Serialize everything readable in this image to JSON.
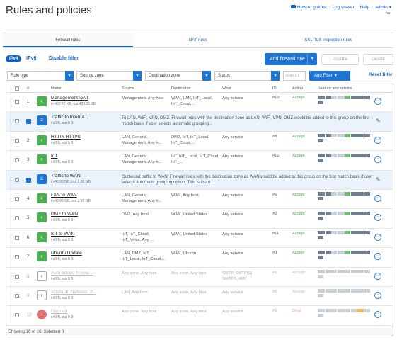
{
  "page": {
    "title": "Rules and policies",
    "top_links": [
      "How-to guides",
      "Log viewer",
      "Help"
    ],
    "user": "admin",
    "user_sub": "na"
  },
  "tabs": [
    "Firewall rules",
    "NAT rules",
    "SSL/TLS inspection rules"
  ],
  "toolbar": {
    "ipv4": "IPv4",
    "ipv6": "IPv6",
    "disable_filter": "Disable filter",
    "add_rule": "Add firewall rule",
    "disable": "Disable",
    "delete": "Delete"
  },
  "filters": {
    "rule_type": "Rule type",
    "source_zone": "Source zone",
    "destination_zone": "Destination zone",
    "status": "Status",
    "rule_id_placeholder": "Rule ID",
    "add_filter": "Add Filter",
    "reset_filter": "Reset filter"
  },
  "columns": {
    "num": "#",
    "name": "Name",
    "source": "Source",
    "destination": "Destination",
    "what": "What",
    "id": "ID",
    "action": "Action",
    "feature": "Feature and service"
  },
  "rows": [
    {
      "num": "1",
      "name": "ManagementToAll",
      "sub": "in 422.75 KB, out 433.25 KB",
      "src": "Management, Any host",
      "dst": "WAN, LAN, IoT_Local, IoT_Cloud,...",
      "what": "Any service",
      "id": "#13",
      "action": "Accept"
    },
    {
      "group": true,
      "name": "Traffic to Interna...",
      "sub": "in 0 B, out 0 B",
      "desc": "To LAN, WiFi, VPN, DMZ. Firewall rules with the destination zone as LAN, WiFi, VPN, DMZ would be added to this group on the first match basis if user selects automatic grouping..."
    },
    {
      "num": "2",
      "name": "HTTP/ HTTPS",
      "sub": "in 0 B, out 0 B",
      "src": "LAN, General, Management, Any h...",
      "dst": "DMZ, IoT, IoT_Local, IoT_Cloud,...",
      "what": "Any service",
      "id": "#8",
      "action": "Accept"
    },
    {
      "num": "3",
      "name": "IoT",
      "sub": "in 0 B, out 0 B",
      "src": "LAN, General, Management, Any h...",
      "dst": "IoT, IoT_Local, IoT_Cloud, IoT_...",
      "what": "Any service",
      "id": "#12",
      "action": "Accept"
    },
    {
      "group": true,
      "name": "Traffic to WAN",
      "sub": "in 45.06 GB, out 1.92 GB",
      "desc": "Outbound traffic to WAN. Firewall rules with the destination zone as WAN would be added to this group on the first match basis if user selects automatic grouping option. This is the d..."
    },
    {
      "num": "4",
      "name": "LAN to WAN",
      "sub": "in 45.06 GB, out 1.92 GB",
      "src": "LAN, General, Management, Any h...",
      "dst": "WAN, Any host",
      "what": "Any service",
      "id": "#6",
      "action": "Accept"
    },
    {
      "num": "5",
      "name": "DMZ to WAN",
      "sub": "in 0 B, out 0 B",
      "src": "DMZ, Any host",
      "dst": "WAN, United States",
      "what": "Any service",
      "id": "#2",
      "action": "Accept"
    },
    {
      "num": "6",
      "name": "IoT to WAN",
      "sub": "in 0 B, out 0 B",
      "src": "IoT, IoT_Cloud, IoT_Voice, Any ...",
      "dst": "WAN, United States",
      "what": "Any service",
      "id": "#11",
      "action": "Accept"
    },
    {
      "num": "7",
      "name": "Ubuntu Update",
      "sub": "in 0 B, out 0 B",
      "src": "LAN, DMZ, IoT, IoT_Local, IoT_Cloud,...",
      "dst": "WAN, Ubuntu",
      "what": "Any service",
      "id": "#3",
      "action": "Accept"
    },
    {
      "num": "8",
      "disabled": true,
      "name": "Auto added firewal...",
      "sub": "in 0 B, out 0 B",
      "src": "Any zone, Any host",
      "dst": "Any zone, Any host",
      "what": "SMTP, SMTP(S), SMTPS_465",
      "id": "#1",
      "action": "Accept"
    },
    {
      "num": "9",
      "disabled": true,
      "name": "#Default_Network_P...",
      "sub": "in 0 B, out 0 B",
      "src": "LAN, Any host",
      "dst": "Any zone, Any host",
      "what": "Any service",
      "id": "#5",
      "action": "Accept"
    },
    {
      "num": "10",
      "disabled": true,
      "drop": true,
      "name": "Drop all",
      "sub": "in 0 B, out 0 B",
      "src": "Any zone, Any host",
      "dst": "Any zone, Any host",
      "what": "Any service",
      "id": "#0",
      "action": "Drop"
    }
  ],
  "footer": "Showing 10 of 10. Selected 0"
}
